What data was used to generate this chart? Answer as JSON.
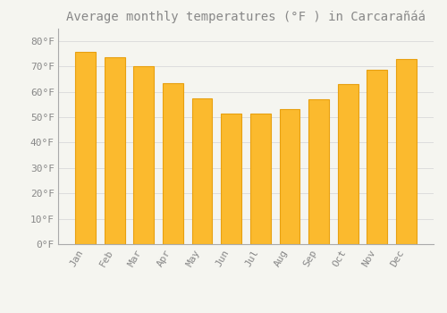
{
  "title": "Average monthly temperatures (°F ) in Carcarañáá",
  "months": [
    "Jan",
    "Feb",
    "Mar",
    "Apr",
    "May",
    "Jun",
    "Jul",
    "Aug",
    "Sep",
    "Oct",
    "Nov",
    "Dec"
  ],
  "values": [
    75.5,
    73.5,
    70.0,
    63.5,
    57.5,
    51.5,
    51.5,
    53.0,
    57.0,
    63.0,
    68.5,
    73.0
  ],
  "bar_color": "#FBBA2E",
  "bar_edge_color": "#E8A010",
  "background_color": "#F5F5F0",
  "plot_bg_color": "#F5F5F0",
  "grid_color": "#DDDDDD",
  "text_color": "#888888",
  "spine_color": "#AAAAAA",
  "ylim": [
    0,
    85
  ],
  "yticks": [
    0,
    10,
    20,
    30,
    40,
    50,
    60,
    70,
    80
  ],
  "ytick_labels": [
    "0°F",
    "10°F",
    "20°F",
    "30°F",
    "40°F",
    "50°F",
    "60°F",
    "70°F",
    "80°F"
  ],
  "title_fontsize": 10,
  "tick_fontsize": 8
}
